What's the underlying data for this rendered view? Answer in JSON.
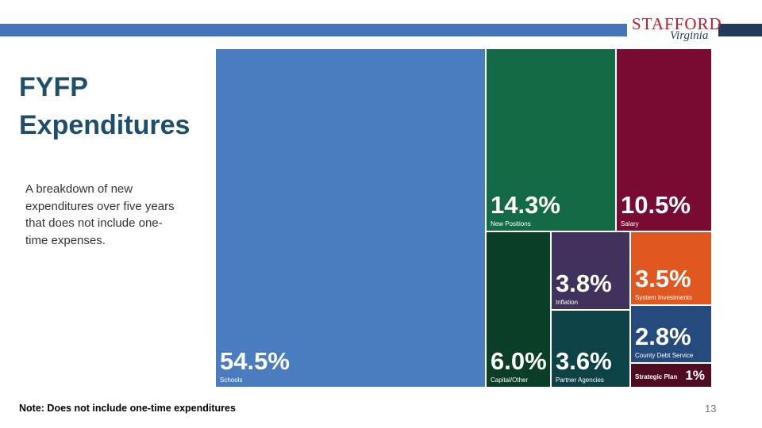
{
  "logo": {
    "word": "STAFFORD",
    "script": "Virginia"
  },
  "title": {
    "line1": "FYFP",
    "line2": "Expenditures"
  },
  "subtitle": "A breakdown of new expenditures over five years that does not include one-time expenses.",
  "note": "Note:  Does not include one-time expenditures",
  "page_number": "13",
  "colors": {
    "top_bar": "#4674b8",
    "top_bar_dark": "#1f3a5a",
    "title": "#1d4f6d",
    "logo_red": "#c01a2b"
  },
  "chart_data": {
    "type": "treemap",
    "title": "FYFP Expenditures",
    "unit": "%",
    "items": [
      {
        "name": "Schools",
        "value": 54.5,
        "label": "54.5%",
        "color": "#4a7cc0"
      },
      {
        "name": "New Positions",
        "value": 14.3,
        "label": "14.3%",
        "color": "#136b45"
      },
      {
        "name": "Salary",
        "value": 10.5,
        "label": "10.5%",
        "color": "#790b33"
      },
      {
        "name": "Capital/Other",
        "value": 6.0,
        "label": "6.0%",
        "color": "#0a3e26"
      },
      {
        "name": "Inflation",
        "value": 3.8,
        "label": "3.8%",
        "color": "#41315d"
      },
      {
        "name": "System Investments",
        "value": 3.5,
        "label": "3.5%",
        "color": "#e0571f"
      },
      {
        "name": "Partner Agencies",
        "value": 3.6,
        "label": "3.6%",
        "color": "#0d4247"
      },
      {
        "name": "County Debt Service",
        "value": 2.8,
        "label": "2.8%",
        "color": "#254b7c"
      },
      {
        "name": "Strategic Plan",
        "value": 1,
        "label": "1%",
        "color": "#4e0b21"
      }
    ]
  }
}
